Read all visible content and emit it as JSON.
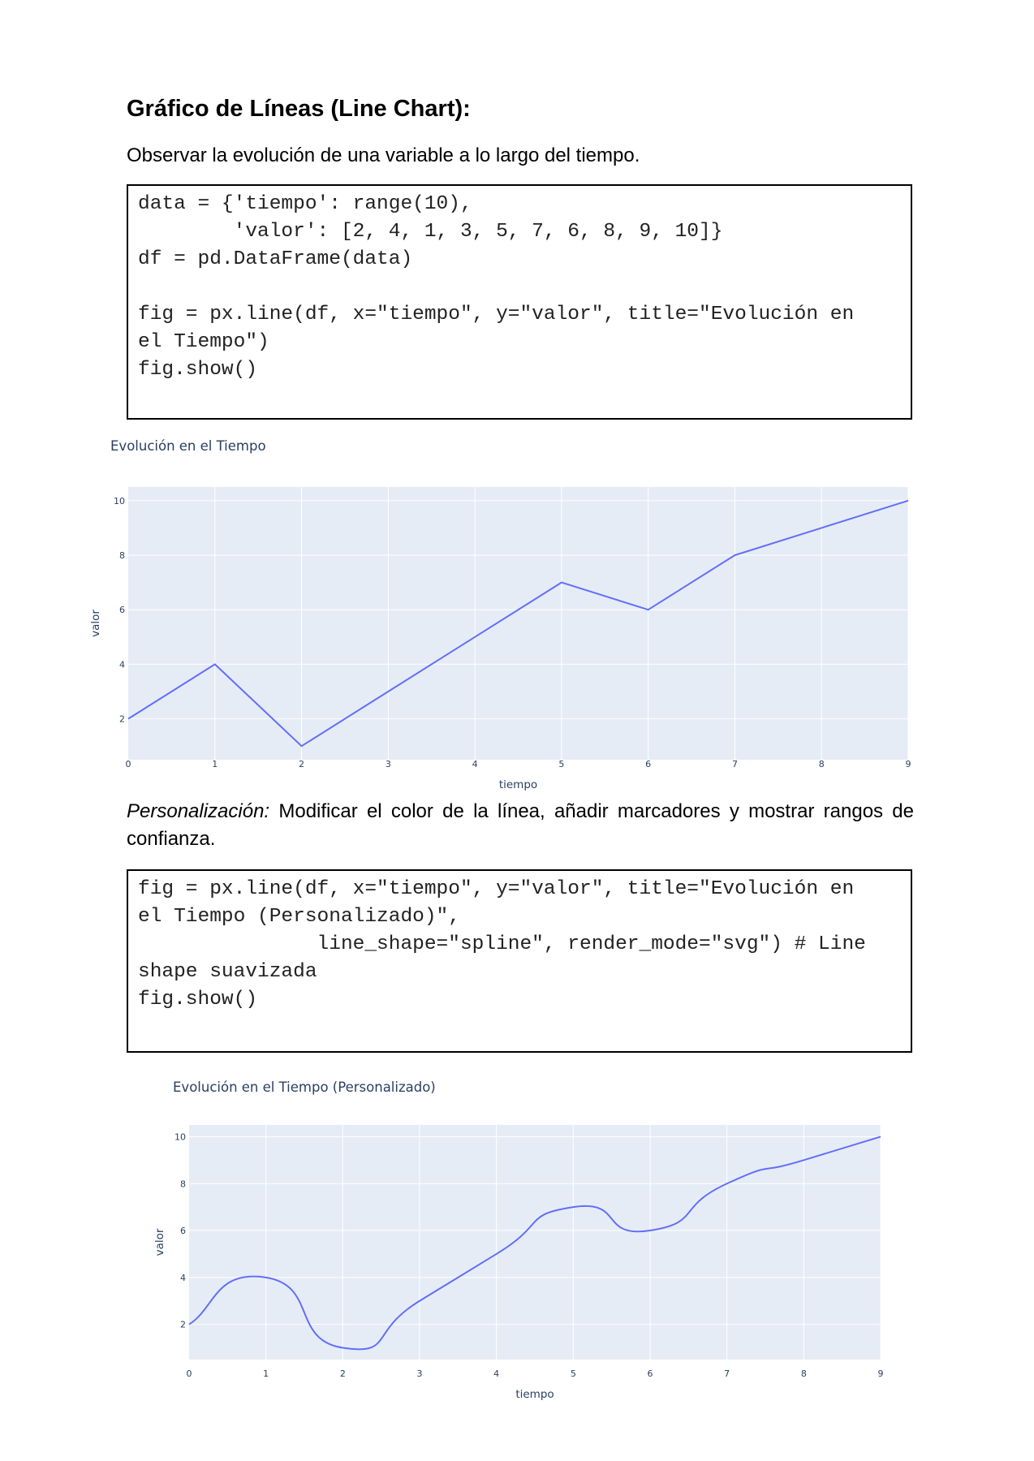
{
  "section": {
    "heading": "Gráfico de Líneas (Line Chart):",
    "intro": "Observar la evolución de una variable a lo largo del tiempo.",
    "customization_lead": "Personalización:",
    "customization_text": " Modificar el color de la línea, añadir marcadores y mostrar rangos de confianza."
  },
  "code_blocks": [
    {
      "lines": [
        "data = {'tiempo': range(10),",
        "        'valor': [2, 4, 1, 3, 5, 7, 6, 8, 9, 10]}",
        "df = pd.DataFrame(data)",
        "",
        "fig = px.line(df, x=\"tiempo\", y=\"valor\", title=\"Evolución en",
        "el Tiempo\")",
        "fig.show()"
      ]
    },
    {
      "lines": [
        "fig = px.line(df, x=\"tiempo\", y=\"valor\", title=\"Evolución en",
        "el Tiempo (Personalizado)\",",
        "               line_shape=\"spline\", render_mode=\"svg\") # Line",
        "shape suavizada",
        "fig.show()"
      ]
    }
  ],
  "chart_data": [
    {
      "type": "line",
      "title": "Evolución en el Tiempo",
      "xlabel": "tiempo",
      "ylabel": "valor",
      "x": [
        0,
        1,
        2,
        3,
        4,
        5,
        6,
        7,
        8,
        9
      ],
      "y": [
        2,
        4,
        1,
        3,
        5,
        7,
        6,
        8,
        9,
        10
      ],
      "xlim": [
        0,
        9
      ],
      "ylim": [
        0.5,
        10.5
      ],
      "xticks": [
        "0",
        "1",
        "2",
        "3",
        "4",
        "5",
        "6",
        "7",
        "8",
        "9"
      ],
      "yticks": [
        "2",
        "4",
        "6",
        "8",
        "10"
      ],
      "line_shape": "linear",
      "line_color": "#636efa",
      "plot_bg": "#e5ecf6",
      "grid": true
    },
    {
      "type": "line",
      "title": "Evolución en el Tiempo (Personalizado)",
      "xlabel": "tiempo",
      "ylabel": "valor",
      "x": [
        0,
        1,
        2,
        3,
        4,
        5,
        6,
        7,
        8,
        9
      ],
      "y": [
        2,
        4,
        1,
        3,
        5,
        7,
        6,
        8,
        9,
        10
      ],
      "xlim": [
        0,
        9
      ],
      "ylim": [
        0.5,
        10.5
      ],
      "xticks": [
        "0",
        "1",
        "2",
        "3",
        "4",
        "5",
        "6",
        "7",
        "8",
        "9"
      ],
      "yticks": [
        "2",
        "4",
        "6",
        "8",
        "10"
      ],
      "line_shape": "spline",
      "line_color": "#636efa",
      "plot_bg": "#e5ecf6",
      "grid": true
    }
  ]
}
